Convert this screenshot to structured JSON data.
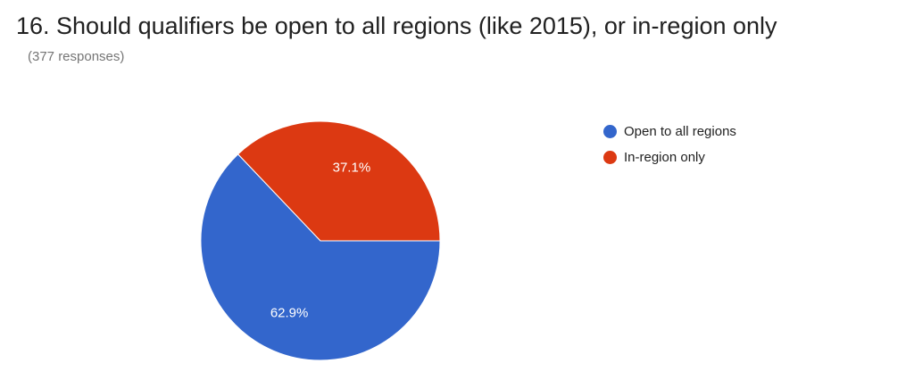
{
  "question": {
    "title": "16. Should qualifiers be open to all regions (like 2015), or in-region only",
    "responses": "(377 responses)"
  },
  "colors": {
    "open_to_all": "#3366cc",
    "in_region": "#dc3912",
    "slice_label": "#ffffff",
    "slice_border": "#ffffff"
  },
  "chart_data": {
    "type": "pie",
    "title": "16. Should qualifiers be open to all regions (like 2015), or in-region only",
    "legend_position": "right",
    "slices": [
      {
        "name": "Open to all regions",
        "value": 62.9,
        "label": "62.9%",
        "color": "#3366cc"
      },
      {
        "name": "In-region only",
        "value": 37.1,
        "label": "37.1%",
        "color": "#dc3912"
      }
    ]
  }
}
